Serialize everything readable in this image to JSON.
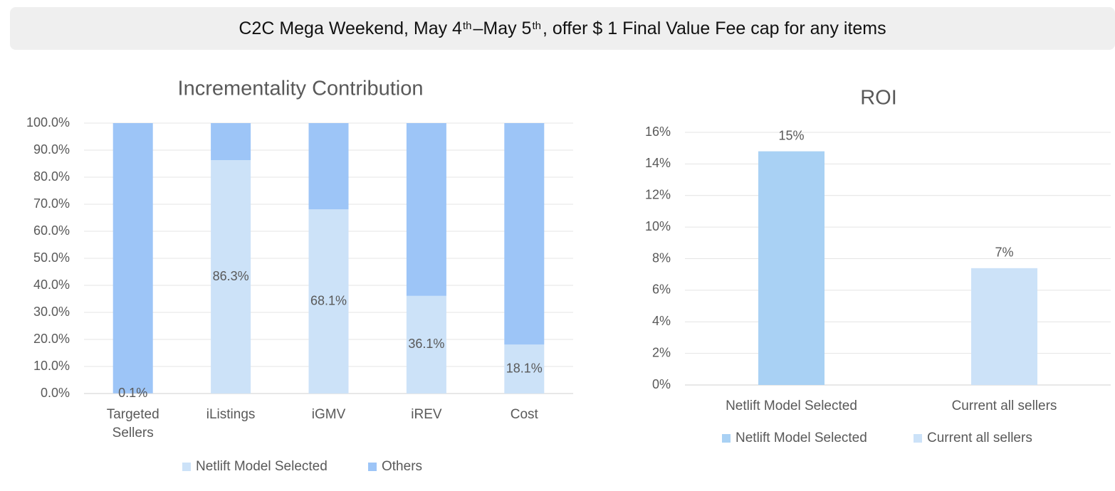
{
  "banner": {
    "prefix": "C2C Mega Weekend, May 4",
    "sup1": "th",
    "middle": " –May 5",
    "sup2": "th",
    "suffix": " , offer $ 1 Final Value Fee cap for any items"
  },
  "chart_data": [
    {
      "type": "bar",
      "stacked": true,
      "title": "Incrementality Contribution",
      "categories": [
        "Targeted\nSellers",
        "iListings",
        "iGMV",
        "iREV",
        "Cost"
      ],
      "series": [
        {
          "name": "Netlift Model Selected",
          "color": "#cce2f8",
          "values": [
            0.1,
            86.3,
            68.1,
            36.1,
            18.1
          ],
          "labels": [
            "0.1%",
            "86.3%",
            "68.1%",
            "36.1%",
            "18.1%"
          ]
        },
        {
          "name": "Others",
          "color": "#9dc5f7",
          "values": [
            99.9,
            13.7,
            31.9,
            63.9,
            81.9
          ]
        }
      ],
      "ylim": [
        0,
        100
      ],
      "ticks": [
        "0.0%",
        "10.0%",
        "20.0%",
        "30.0%",
        "40.0%",
        "50.0%",
        "60.0%",
        "70.0%",
        "80.0%",
        "90.0%",
        "100.0%"
      ],
      "grid": true,
      "legend": "bottom"
    },
    {
      "type": "bar",
      "title": "ROI",
      "categories": [
        "Netlift Model Selected",
        "Current all sellers"
      ],
      "series": [
        {
          "name": "Netlift Model Selected",
          "color": "#a9d1f4",
          "values": [
            14.8,
            null
          ],
          "labels": [
            "15%",
            ""
          ]
        },
        {
          "name": "Current all sellers",
          "color": "#cce2f8",
          "values": [
            null,
            7.4
          ],
          "labels": [
            "",
            "7%"
          ]
        }
      ],
      "ylim": [
        0,
        16
      ],
      "ticks": [
        "0%",
        "2%",
        "4%",
        "6%",
        "8%",
        "10%",
        "12%",
        "14%",
        "16%"
      ],
      "grid": true,
      "legend": "bottom"
    }
  ]
}
